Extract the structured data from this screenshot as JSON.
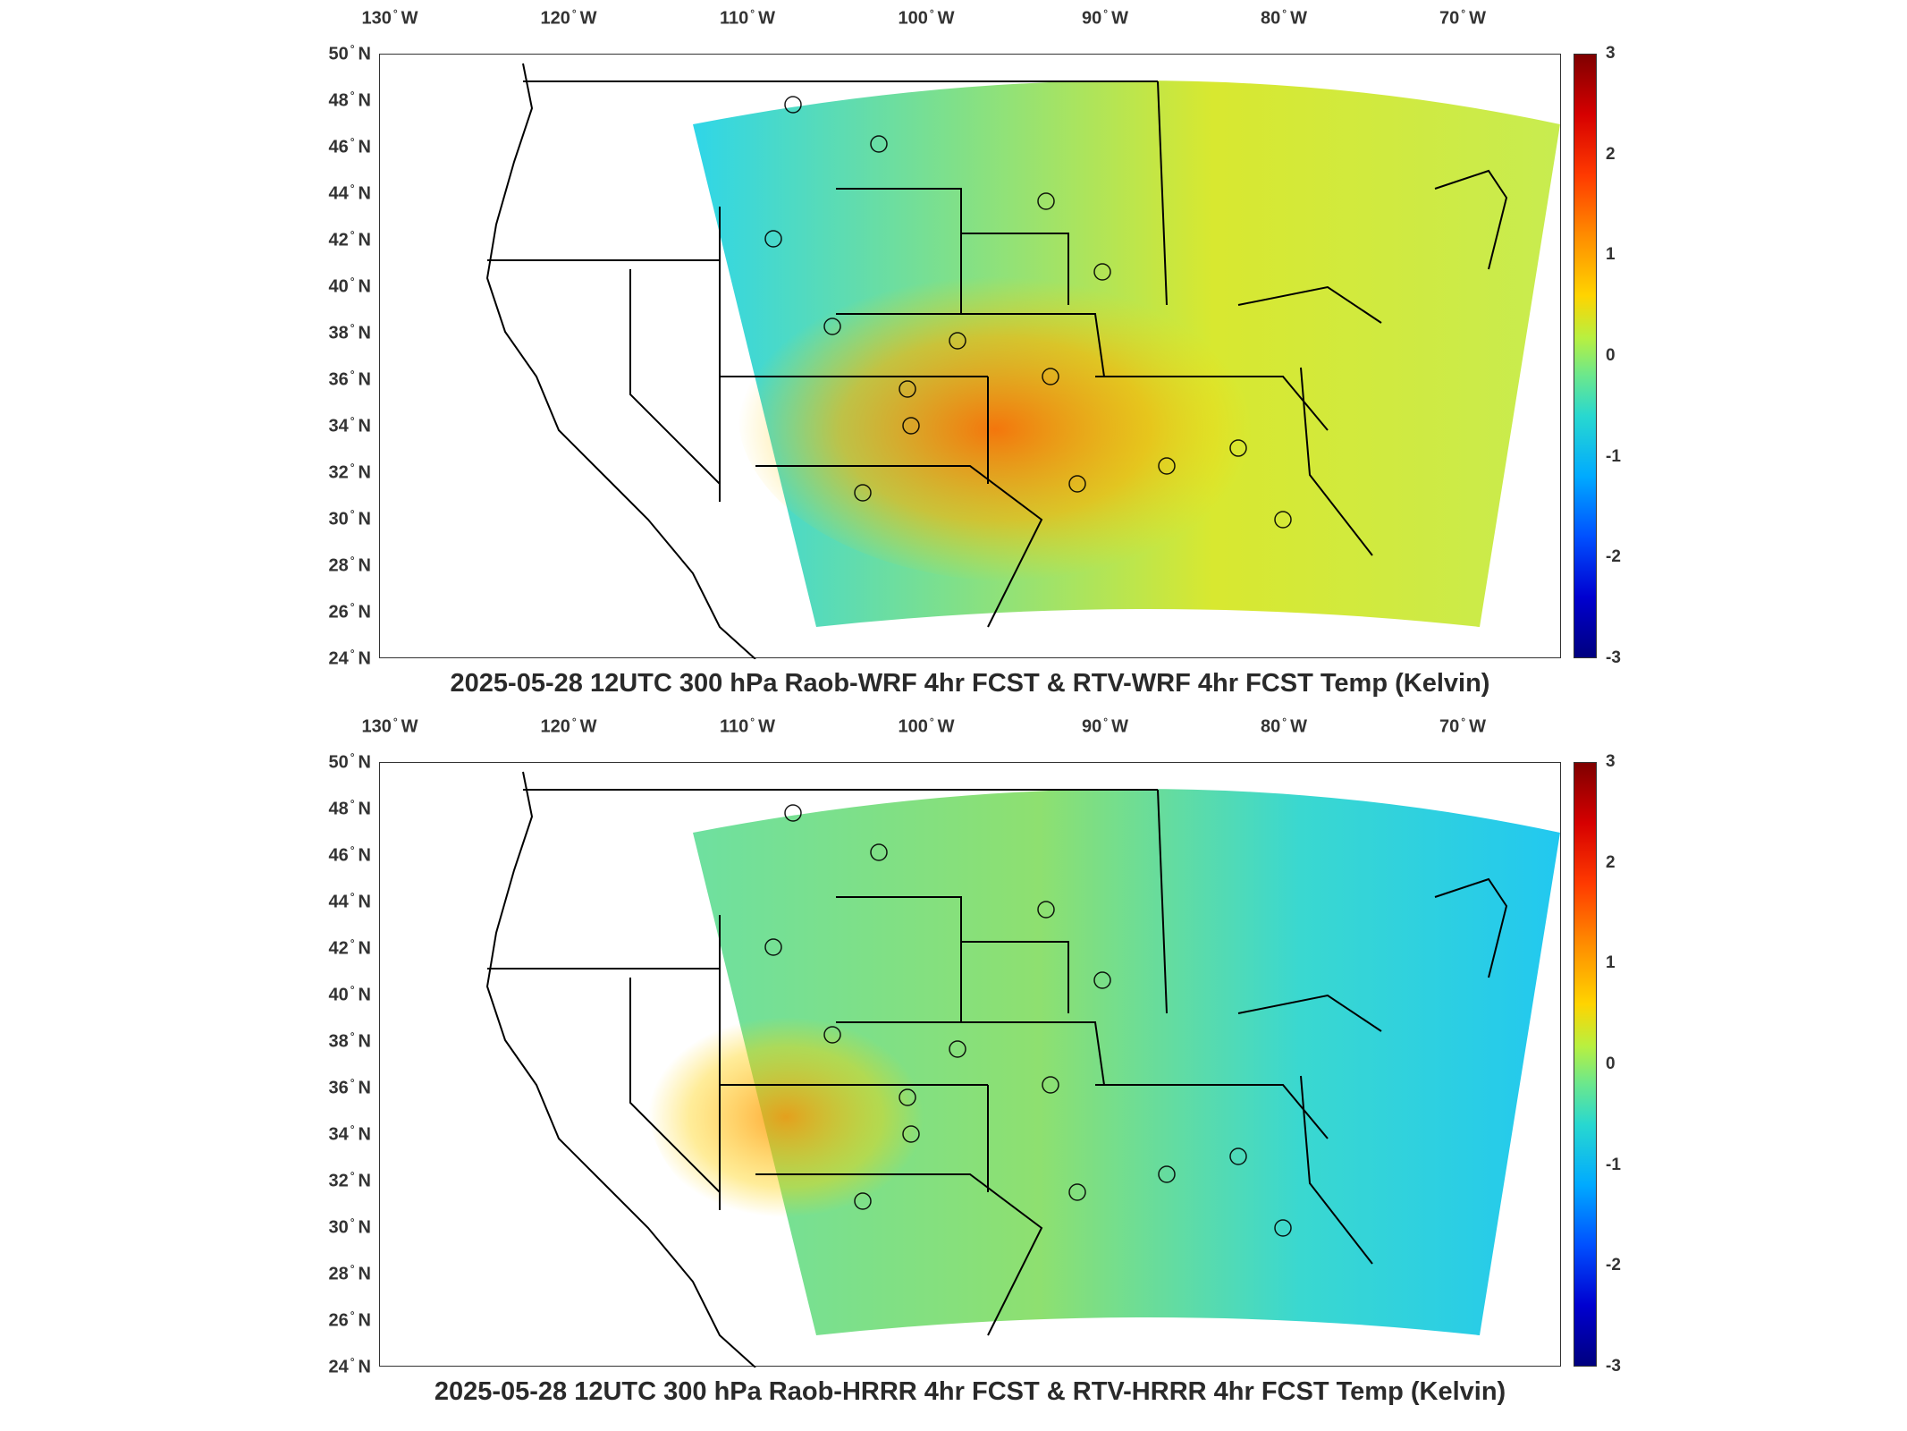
{
  "lon_labels": [
    "130",
    "120",
    "110",
    "100",
    "90",
    "80",
    "70"
  ],
  "lon_suffix": "W",
  "lat_labels": [
    "50",
    "48",
    "46",
    "44",
    "42",
    "40",
    "38",
    "36",
    "34",
    "32",
    "30",
    "28",
    "26",
    "24"
  ],
  "lat_suffix": "N",
  "colorbar": {
    "ticks": [
      "3",
      "2",
      "1",
      "0",
      "-1",
      "-2",
      "-3"
    ],
    "min": -3,
    "max": 3
  },
  "colors": {
    "warm_top": "#ff8c00",
    "warm_bottom": "#b8f040",
    "cool": "#28d8d0"
  },
  "panels": [
    {
      "title": "2025-05-28 12UTC 300 hPa Raob-WRF 4hr FCST & RTV-WRF 4hr FCST Temp (Kelvin)"
    },
    {
      "title": "2025-05-28 12UTC 300 hPa Raob-HRRR 4hr FCST & RTV-HRRR 4hr FCST Temp (Kelvin)"
    }
  ]
}
